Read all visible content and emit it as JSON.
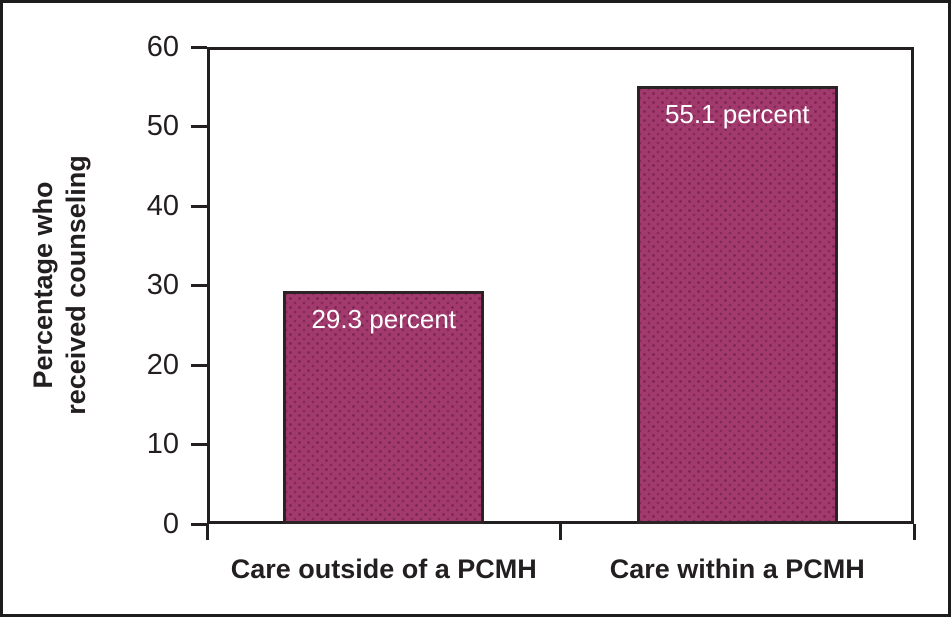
{
  "figure": {
    "background": "#ffffff",
    "border_color": "#1c1c1c"
  },
  "chart_data": {
    "type": "bar",
    "title": "",
    "categories": [
      "Care outside of a PCMH",
      "Care within a PCMH"
    ],
    "values": [
      29.3,
      55.1
    ],
    "bar_value_labels": [
      "29.3 percent",
      "55.1 percent"
    ],
    "ylabel": "Percentage who received counseling",
    "ylabel_lines": [
      "Percentage who",
      "received counseling"
    ],
    "xlabel": "",
    "yticks": [
      0,
      10,
      20,
      30,
      40,
      50,
      60
    ],
    "ylim": [
      0,
      60
    ],
    "grid": "off",
    "legend": "none",
    "colors": {
      "bar_fill": "#a33a6e",
      "bar_dots": "#7e2a57",
      "bar_border": "#2b2326",
      "axis": "#231f20",
      "tick_label": "#231f20",
      "value_label": "#ffffff"
    }
  }
}
